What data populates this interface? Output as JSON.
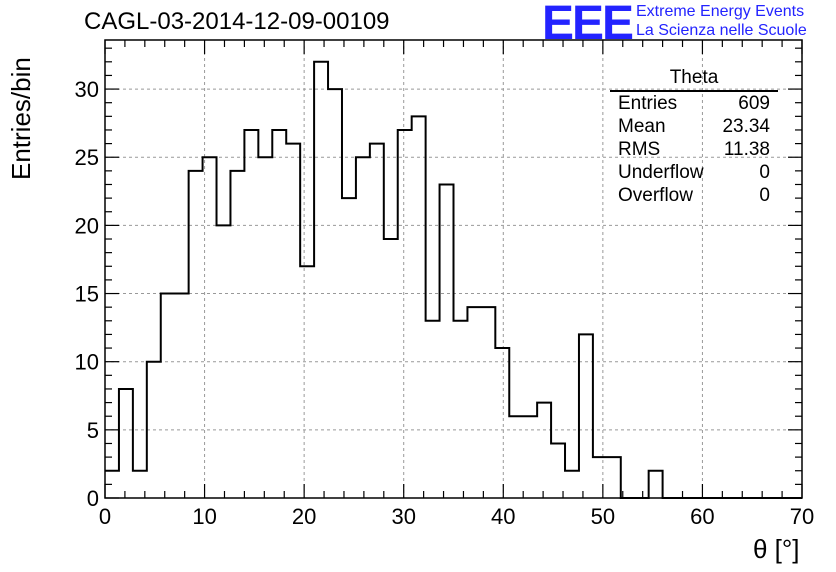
{
  "title": "CAGL-03-2014-12-09-00109",
  "logo": {
    "mark": "EEE",
    "line1": "Extreme Energy Events",
    "line2": "La Scienza nelle Scuole",
    "color": "#2323ff"
  },
  "stats_box": {
    "title": "Theta",
    "rows": [
      {
        "label": "Entries",
        "value": "609"
      },
      {
        "label": "Mean",
        "value": "23.34"
      },
      {
        "label": "RMS",
        "value": "11.38"
      },
      {
        "label": "Underflow",
        "value": "0"
      },
      {
        "label": "Overflow",
        "value": "0"
      }
    ]
  },
  "chart_data": {
    "type": "bar",
    "style": "step-histogram",
    "xlabel": "θ [°]",
    "ylabel": "Entries/bin",
    "xlim": [
      0,
      70
    ],
    "ylim": [
      0,
      33.6
    ],
    "bin_width": 1.4,
    "x_ticks": [
      0,
      10,
      20,
      30,
      40,
      50,
      60,
      70
    ],
    "y_ticks": [
      0,
      5,
      10,
      15,
      20,
      25,
      30
    ],
    "grid": true,
    "bin_edges_start": 0,
    "values": [
      2,
      8,
      2,
      10,
      15,
      15,
      24,
      25,
      20,
      24,
      27,
      25,
      27,
      26,
      17,
      32,
      30,
      22,
      25,
      26,
      19,
      27,
      28,
      13,
      23,
      13,
      14,
      14,
      11,
      6,
      6,
      7,
      4,
      2,
      12,
      3,
      3,
      0,
      0,
      2,
      0,
      0,
      0,
      0,
      0,
      0,
      0,
      0,
      0,
      0
    ]
  }
}
